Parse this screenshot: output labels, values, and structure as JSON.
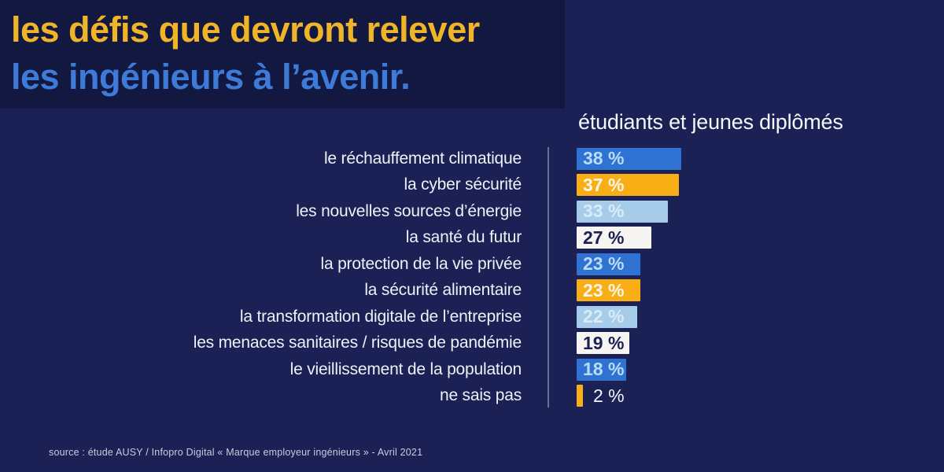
{
  "page": {
    "background_color": "#1b2154",
    "title_block_background_color": "#121840"
  },
  "header": {
    "title_line1": "les défis que devront relever",
    "title_line2": "les ingénieurs à l’avenir.",
    "title_line1_color": "#f0b429",
    "title_line2_color": "#3e7ad8"
  },
  "chart_data": {
    "type": "bar",
    "orientation": "horizontal",
    "title": "les défis que devront relever les ingénieurs à l’avenir.",
    "legend": "étudiants et jeunes diplômés",
    "legend_position": "top-right",
    "grid": false,
    "xlim": [
      0,
      40
    ],
    "categories": [
      "le réchauffement climatique",
      "la cyber sécurité",
      "les nouvelles sources d’énergie",
      "la santé du futur",
      "la protection de la vie privée",
      "la sécurité alimentaire",
      "la transformation digitale de l’entreprise",
      "les menaces sanitaires / risques de pandémie",
      "le vieillissement de la population",
      "ne sais pas"
    ],
    "values": [
      38,
      37,
      33,
      27,
      23,
      23,
      22,
      19,
      18,
      2
    ],
    "value_suffix": " %",
    "bar_colors": [
      "#2f72d1",
      "#f9ae16",
      "#a7cce9",
      "#f7f5f1",
      "#2f72d1",
      "#f9ae16",
      "#a7cce9",
      "#f7f5f1",
      "#2f72d1",
      "#f9ae16"
    ],
    "bar_text_colors": [
      "#b9ddf8",
      "#fcf6ea",
      "#d8ebf8",
      "#1b2154",
      "#b9ddf8",
      "#fcf6ea",
      "#d8ebf8",
      "#1b2154",
      "#b9ddf8",
      "#f2f5fa"
    ]
  },
  "footer": {
    "source": "source : étude AUSY / Infopro Digital « Marque employeur ingénieurs » - Avril 2021"
  }
}
